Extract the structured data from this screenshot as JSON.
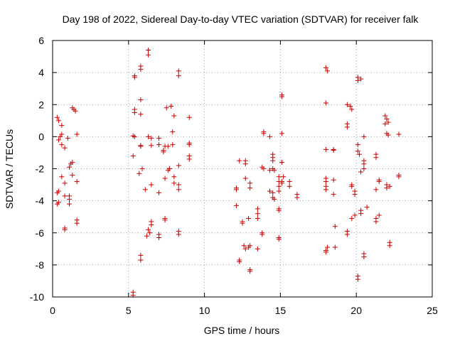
{
  "chart_data": {
    "type": "scatter",
    "title": "Day 198 of 2022, Sidereal Day-to-day VTEC variation (SDTVAR) for receiver falk",
    "xlabel": "GPS time / hours",
    "ylabel": "SDTVAR / TECUs",
    "xlim": [
      0,
      25
    ],
    "ylim": [
      -10,
      6
    ],
    "xticks": [
      "0",
      "5",
      "10",
      "15",
      "20",
      "25"
    ],
    "yticks": [
      "-10",
      "-8",
      "-6",
      "-4",
      "-2",
      "0",
      "2",
      "4",
      "6"
    ],
    "grid": true,
    "marker": "plus",
    "colors": {
      "points": "#cc0000",
      "grid": "#a0a0a0",
      "axes": "#000000"
    },
    "series": [
      {
        "name": "SDTVAR",
        "points": [
          [
            0.3,
            1.2
          ],
          [
            0.4,
            1.0
          ],
          [
            0.6,
            0.7
          ],
          [
            0.6,
            0.15
          ],
          [
            0.5,
            0.0
          ],
          [
            0.4,
            -0.2
          ],
          [
            0.6,
            -0.5
          ],
          [
            0.8,
            -0.7
          ],
          [
            1.0,
            -0.1
          ],
          [
            1.3,
            1.8
          ],
          [
            1.4,
            1.7
          ],
          [
            1.5,
            1.6
          ],
          [
            1.6,
            0.15
          ],
          [
            1.2,
            -1.7
          ],
          [
            1.3,
            -1.6
          ],
          [
            1.1,
            -1.9
          ],
          [
            0.6,
            -2.5
          ],
          [
            1.3,
            -2.4
          ],
          [
            0.8,
            -2.9
          ],
          [
            1.6,
            -2.8
          ],
          [
            0.4,
            -3.4
          ],
          [
            0.3,
            -3.5
          ],
          [
            0.8,
            -3.7
          ],
          [
            1.1,
            -3.7
          ],
          [
            1.1,
            -3.9
          ],
          [
            1.1,
            -4.2
          ],
          [
            0.4,
            -4.1
          ],
          [
            0.3,
            -4.2
          ],
          [
            1.6,
            -5.2
          ],
          [
            1.6,
            -5.4
          ],
          [
            0.8,
            -5.7
          ],
          [
            0.8,
            -5.8
          ],
          [
            5.4,
            3.8
          ],
          [
            5.4,
            3.7
          ],
          [
            5.8,
            4.4
          ],
          [
            5.8,
            4.2
          ],
          [
            6.3,
            5.4
          ],
          [
            6.3,
            5.1
          ],
          [
            5.4,
            1.7
          ],
          [
            5.4,
            1.5
          ],
          [
            5.8,
            2.3
          ],
          [
            5.8,
            1.4
          ],
          [
            5.3,
            0.05
          ],
          [
            5.4,
            0.0
          ],
          [
            5.8,
            -0.55
          ],
          [
            5.8,
            -0.6
          ],
          [
            6.3,
            0.0
          ],
          [
            6.5,
            -0.1
          ],
          [
            6.5,
            -0.55
          ],
          [
            5.3,
            -1.2
          ],
          [
            5.7,
            -2.3
          ],
          [
            5.9,
            -2.0
          ],
          [
            6.1,
            -3.3
          ],
          [
            6.5,
            -3.0
          ],
          [
            6.3,
            -5.8
          ],
          [
            6.4,
            -6.0
          ],
          [
            6.2,
            -6.2
          ],
          [
            6.5,
            -5.3
          ],
          [
            6.5,
            -5.5
          ],
          [
            5.8,
            -7.4
          ],
          [
            5.8,
            -7.7
          ],
          [
            5.3,
            -9.7
          ],
          [
            5.3,
            -9.9
          ],
          [
            7.0,
            -0.5
          ],
          [
            7.4,
            -0.6
          ],
          [
            7.0,
            -0.1
          ],
          [
            7.3,
            -0.85
          ],
          [
            7.3,
            -0.95
          ],
          [
            7.6,
            -0.6
          ],
          [
            7.9,
            -0.5
          ],
          [
            7.5,
            1.8
          ],
          [
            7.8,
            1.9
          ],
          [
            8.3,
            4.1
          ],
          [
            8.3,
            3.8
          ],
          [
            8.0,
            1.3
          ],
          [
            7.9,
            0.3
          ],
          [
            7.7,
            -2.0
          ],
          [
            7.6,
            -2.1
          ],
          [
            7.4,
            -2.6
          ],
          [
            8.0,
            -2.5
          ],
          [
            8.3,
            -1.8
          ],
          [
            8.0,
            -2.9
          ],
          [
            8.3,
            -3.0
          ],
          [
            8.3,
            -3.3
          ],
          [
            7.0,
            -3.5
          ],
          [
            7.4,
            -5.1
          ],
          [
            7.4,
            -5.2
          ],
          [
            8.3,
            -5.9
          ],
          [
            8.3,
            -6.1
          ],
          [
            7.0,
            -6.1
          ],
          [
            7.0,
            -6.3
          ],
          [
            9.0,
            1.2
          ],
          [
            9.0,
            -0.4
          ],
          [
            9.0,
            -0.5
          ],
          [
            9.0,
            -1.2
          ],
          [
            9.0,
            -1.4
          ],
          [
            12.1,
            -3.2
          ],
          [
            12.1,
            -3.3
          ],
          [
            12.3,
            -1.5
          ],
          [
            12.1,
            -4.3
          ],
          [
            12.5,
            -5.3
          ],
          [
            12.5,
            -5.4
          ],
          [
            12.3,
            -7.7
          ],
          [
            12.3,
            -7.8
          ],
          [
            12.6,
            -6.8
          ],
          [
            12.7,
            -7.0
          ],
          [
            12.9,
            -6.9
          ],
          [
            13.0,
            -6.8
          ],
          [
            13.0,
            -8.3
          ],
          [
            13.0,
            -8.4
          ],
          [
            12.7,
            -1.5
          ],
          [
            12.7,
            -1.7
          ],
          [
            12.7,
            -2.6
          ],
          [
            13.0,
            -2.9
          ],
          [
            13.0,
            -3.2
          ],
          [
            12.9,
            -5.1
          ],
          [
            13.5,
            -4.5
          ],
          [
            13.5,
            -4.8
          ],
          [
            13.5,
            -5.1
          ],
          [
            13.5,
            -7.0
          ],
          [
            13.8,
            -6.1
          ],
          [
            13.8,
            -6.0
          ],
          [
            13.8,
            -1.9
          ],
          [
            13.9,
            -2.0
          ],
          [
            13.9,
            0.3
          ],
          [
            13.9,
            0.2
          ],
          [
            14.3,
            0.0
          ],
          [
            14.5,
            -1.1
          ],
          [
            14.5,
            -1.3
          ],
          [
            14.5,
            -1.5
          ],
          [
            14.5,
            -2.0
          ],
          [
            14.3,
            -2.1
          ],
          [
            14.6,
            -2.1
          ],
          [
            14.3,
            -3.4
          ],
          [
            14.5,
            -3.5
          ],
          [
            14.5,
            -3.8
          ],
          [
            14.6,
            -3.9
          ],
          [
            14.9,
            -2.5
          ],
          [
            14.9,
            -2.8
          ],
          [
            14.9,
            -3.1
          ],
          [
            14.9,
            -3.4
          ],
          [
            14.9,
            -4.5
          ],
          [
            14.9,
            -4.6
          ],
          [
            14.9,
            -6.3
          ],
          [
            14.9,
            -6.4
          ],
          [
            15.1,
            2.6
          ],
          [
            15.1,
            2.5
          ],
          [
            15.1,
            0.2
          ],
          [
            15.1,
            -1.6
          ],
          [
            15.2,
            -2.5
          ],
          [
            15.1,
            -2.8
          ],
          [
            15.1,
            -2.9
          ],
          [
            15.6,
            -2.8
          ],
          [
            15.6,
            -3.1
          ],
          [
            16.1,
            -3.6
          ],
          [
            16.1,
            -3.8
          ],
          [
            18.0,
            4.3
          ],
          [
            18.1,
            4.1
          ],
          [
            18.0,
            2.1
          ],
          [
            18.0,
            -0.8
          ],
          [
            18.0,
            -2.6
          ],
          [
            18.0,
            -2.8
          ],
          [
            18.0,
            -3.1
          ],
          [
            18.0,
            -3.3
          ],
          [
            18.1,
            -6.9
          ],
          [
            18.0,
            -7.1
          ],
          [
            18.0,
            -7.2
          ],
          [
            18.5,
            -0.8
          ],
          [
            18.5,
            -0.85
          ],
          [
            18.5,
            -2.7
          ],
          [
            18.5,
            -3.6
          ],
          [
            18.6,
            -5.6
          ],
          [
            18.6,
            -6.9
          ],
          [
            19.4,
            2.0
          ],
          [
            19.6,
            1.9
          ],
          [
            19.7,
            1.7
          ],
          [
            19.4,
            0.8
          ],
          [
            19.4,
            0.6
          ],
          [
            19.4,
            -5.9
          ],
          [
            19.4,
            -6.1
          ],
          [
            19.7,
            -3.0
          ],
          [
            19.7,
            -3.1
          ],
          [
            19.7,
            -5.1
          ],
          [
            19.9,
            -3.4
          ],
          [
            19.9,
            -3.6
          ],
          [
            19.9,
            -4.9
          ],
          [
            20.1,
            3.7
          ],
          [
            20.1,
            3.5
          ],
          [
            20.3,
            3.6
          ],
          [
            20.1,
            -0.5
          ],
          [
            20.1,
            -0.9
          ],
          [
            20.2,
            -1.1
          ],
          [
            20.3,
            -2.2
          ],
          [
            20.1,
            -8.7
          ],
          [
            20.1,
            -8.9
          ],
          [
            20.3,
            -4.6
          ],
          [
            20.3,
            -4.8
          ],
          [
            20.5,
            0.0
          ],
          [
            20.5,
            -1.5
          ],
          [
            20.5,
            -1.7
          ],
          [
            20.5,
            -2.0
          ],
          [
            20.5,
            -7.3
          ],
          [
            20.5,
            -7.5
          ],
          [
            20.7,
            -4.4
          ],
          [
            21.3,
            -1.1
          ],
          [
            21.3,
            -1.3
          ],
          [
            21.3,
            -3.3
          ],
          [
            21.3,
            -5.1
          ],
          [
            21.3,
            -5.3
          ],
          [
            21.5,
            -4.9
          ],
          [
            21.5,
            -2.7
          ],
          [
            21.5,
            -2.8
          ],
          [
            21.9,
            1.3
          ],
          [
            22.0,
            1.1
          ],
          [
            22.1,
            0.9
          ],
          [
            21.9,
            0.8
          ],
          [
            22.0,
            0.2
          ],
          [
            22.1,
            0.1
          ],
          [
            22.0,
            -3.0
          ],
          [
            22.0,
            -3.2
          ],
          [
            22.2,
            -3.1
          ],
          [
            22.2,
            -6.6
          ],
          [
            22.2,
            -6.8
          ],
          [
            22.8,
            0.15
          ],
          [
            22.8,
            -2.4
          ],
          [
            22.8,
            -2.5
          ]
        ]
      }
    ]
  }
}
